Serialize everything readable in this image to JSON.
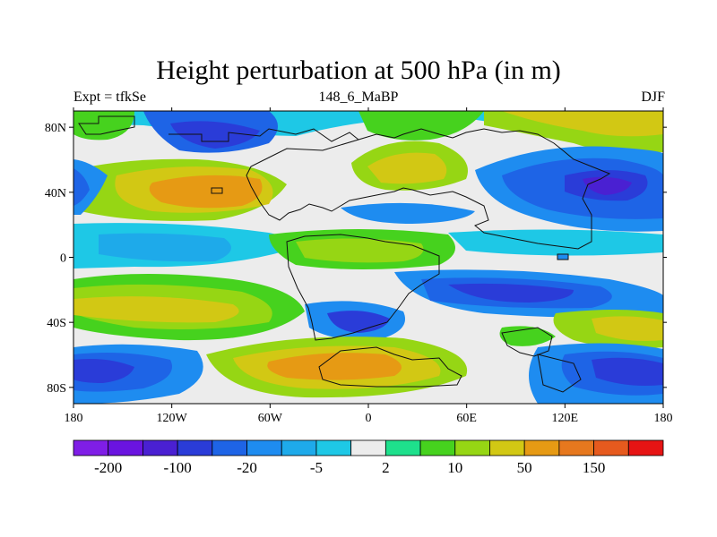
{
  "figure": {
    "title": "Height perturbation at 500 hPa (in m)",
    "left_label": "Expt = tfkSe",
    "center_label": "148_6_MaBP",
    "right_label": "DJF"
  },
  "map": {
    "projection": "cylindrical equidistant",
    "lon_range": [
      -180,
      180
    ],
    "lat_range": [
      -90,
      90
    ],
    "x_ticks": [
      {
        "value": -180,
        "label": "180"
      },
      {
        "value": -120,
        "label": "120W"
      },
      {
        "value": -60,
        "label": "60W"
      },
      {
        "value": 0,
        "label": "0"
      },
      {
        "value": 60,
        "label": "60E"
      },
      {
        "value": 120,
        "label": "120E"
      },
      {
        "value": 180,
        "label": "180"
      }
    ],
    "y_ticks": [
      {
        "value": 80,
        "label": "80N"
      },
      {
        "value": 40,
        "label": "40N"
      },
      {
        "value": 0,
        "label": "0"
      },
      {
        "value": -40,
        "label": "40S"
      },
      {
        "value": -80,
        "label": "80S"
      }
    ],
    "colorbar": {
      "colors": [
        "#7f1ee6",
        "#6a14e0",
        "#4a20d2",
        "#2a3cd8",
        "#1e64e6",
        "#1e8cf0",
        "#1eaaea",
        "#1ec8e6",
        "#ececec",
        "#1ee08c",
        "#46d21e",
        "#96d614",
        "#d2c814",
        "#e69a14",
        "#e6781e",
        "#e65a1e",
        "#e61414"
      ],
      "visible_labels": [
        "-200",
        "-100",
        "-20",
        "-5",
        "2",
        "10",
        "50",
        "150"
      ]
    }
  }
}
